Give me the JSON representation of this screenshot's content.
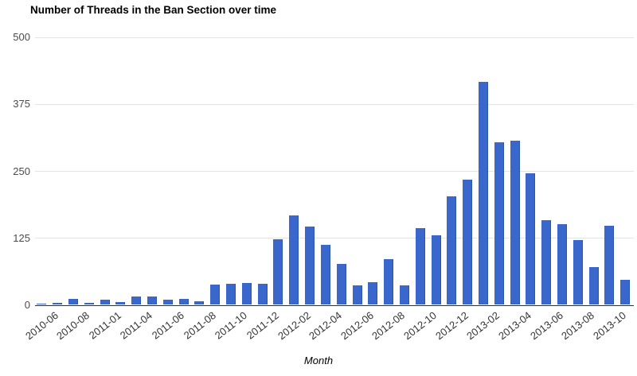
{
  "chart_data": {
    "type": "bar",
    "title": "Number of Threads in the Ban Section over time",
    "xlabel": "Month",
    "ylabel": "",
    "ylim": [
      0,
      500
    ],
    "yticks": [
      0,
      125,
      250,
      375,
      500
    ],
    "grid": true,
    "legend": "none",
    "bar_color": "#3a67cb",
    "bar_edge_color": "#2d55a7",
    "grid_color": "#e3e3e3",
    "axis_line_color": "#2e2e2e",
    "ytick_color": "#4a4a4a",
    "xtick_color": "#333333",
    "tick_label_every": 2,
    "x_tick_labels": [
      "2010-06",
      "2010-08",
      "2011-01",
      "2011-04",
      "2011-06",
      "2011-08",
      "2011-10",
      "2011-12",
      "2012-02",
      "2012-04",
      "2012-06",
      "2012-08",
      "2012-10",
      "2012-12",
      "2013-02",
      "2013-04",
      "2013-06",
      "2013-08",
      "2013-10"
    ],
    "values": [
      2,
      4,
      11,
      3,
      9,
      5,
      16,
      15,
      9,
      11,
      6,
      38,
      40,
      41,
      40,
      122,
      167,
      146,
      112,
      77,
      37,
      42,
      86,
      37,
      143,
      130,
      202,
      233,
      416,
      304,
      306,
      246,
      158,
      150,
      121,
      71,
      147,
      47
    ]
  }
}
